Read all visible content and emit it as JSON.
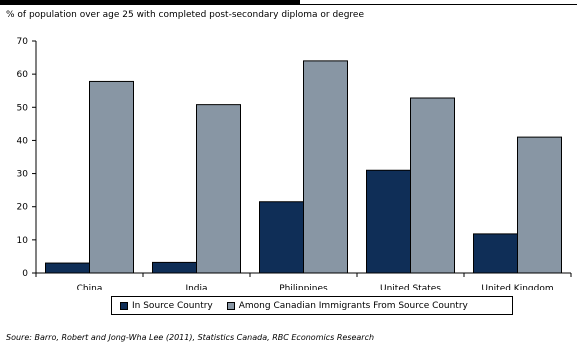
{
  "subtitle": "% of population over age 25 with completed post-secondary diploma or degree",
  "source": "Soure: Barro, Robert and Jong-Wha Lee (2011), Statistics Canada,  RBC Economics Research",
  "chart_data": {
    "type": "bar",
    "categories": [
      "China",
      "India",
      "Philippines",
      "United States",
      "United Kingdom"
    ],
    "series": [
      {
        "name": "In Source Country",
        "values": [
          3,
          3.2,
          21.5,
          31,
          11.8
        ],
        "color": "#0f2e57"
      },
      {
        "name": "Among Canadian Immigrants From Source Country",
        "values": [
          57.8,
          50.8,
          64,
          52.8,
          41
        ],
        "color": "#8896a4"
      }
    ],
    "ylim": [
      0,
      70
    ],
    "yticks": [
      0,
      10,
      20,
      30,
      40,
      50,
      60,
      70
    ],
    "grid": false,
    "legend_position": "bottom"
  }
}
